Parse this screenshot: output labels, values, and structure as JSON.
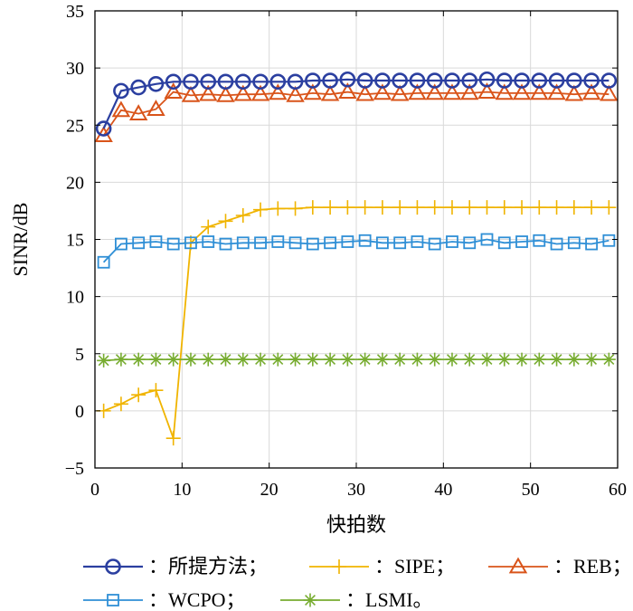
{
  "chart_data": {
    "type": "line",
    "xlabel": "快拍数",
    "ylabel": "SINR/dB",
    "xlim": [
      0,
      60
    ],
    "ylim": [
      -5,
      35
    ],
    "xticks": [
      0,
      10,
      20,
      30,
      40,
      50,
      60
    ],
    "yticks": [
      -5,
      0,
      5,
      10,
      15,
      20,
      25,
      30,
      35
    ],
    "grid": true,
    "legend_position": "bottom",
    "x": [
      1,
      3,
      5,
      7,
      9,
      11,
      13,
      15,
      17,
      19,
      21,
      23,
      25,
      27,
      29,
      31,
      33,
      35,
      37,
      39,
      41,
      43,
      45,
      47,
      49,
      51,
      53,
      55,
      57,
      59
    ],
    "series": [
      {
        "name": "所提方法",
        "legend_label": "：所提方法；",
        "color": "#2b3fa0",
        "marker": "circle",
        "values": [
          24.7,
          28.0,
          28.3,
          28.6,
          28.8,
          28.8,
          28.8,
          28.8,
          28.8,
          28.8,
          28.8,
          28.8,
          28.9,
          28.9,
          29.0,
          28.9,
          28.9,
          28.9,
          28.9,
          28.9,
          28.9,
          28.9,
          29.0,
          28.9,
          28.9,
          28.9,
          28.9,
          28.9,
          28.9,
          28.9
        ]
      },
      {
        "name": "SIPE",
        "legend_label": "：SIPE；",
        "color": "#f0b400",
        "marker": "plus",
        "values": [
          0.0,
          0.6,
          1.4,
          1.8,
          -2.4,
          14.7,
          16.1,
          16.6,
          17.1,
          17.6,
          17.7,
          17.7,
          17.8,
          17.8,
          17.8,
          17.8,
          17.8,
          17.8,
          17.8,
          17.8,
          17.8,
          17.8,
          17.8,
          17.8,
          17.8,
          17.8,
          17.8,
          17.8,
          17.8,
          17.8
        ]
      },
      {
        "name": "REB",
        "legend_label": "：REB；",
        "color": "#d9541a",
        "marker": "triangle",
        "values": [
          24.1,
          26.3,
          26.0,
          26.4,
          27.9,
          27.6,
          27.7,
          27.6,
          27.7,
          27.7,
          27.8,
          27.6,
          27.8,
          27.7,
          27.9,
          27.7,
          27.8,
          27.7,
          27.8,
          27.8,
          27.8,
          27.8,
          27.9,
          27.8,
          27.8,
          27.8,
          27.8,
          27.7,
          27.8,
          27.7
        ]
      },
      {
        "name": "WCPO",
        "legend_label": "：WCPO；",
        "color": "#2f8fd6",
        "marker": "square",
        "values": [
          13.0,
          14.6,
          14.7,
          14.8,
          14.6,
          14.7,
          14.8,
          14.6,
          14.7,
          14.7,
          14.8,
          14.7,
          14.6,
          14.7,
          14.8,
          14.9,
          14.7,
          14.7,
          14.8,
          14.6,
          14.8,
          14.7,
          15.0,
          14.7,
          14.8,
          14.9,
          14.6,
          14.7,
          14.6,
          14.9
        ]
      },
      {
        "name": "LSMI",
        "legend_label": "：LSMI。",
        "color": "#77ac30",
        "marker": "asterisk",
        "values": [
          4.4,
          4.5,
          4.5,
          4.5,
          4.5,
          4.5,
          4.5,
          4.5,
          4.5,
          4.5,
          4.5,
          4.5,
          4.5,
          4.5,
          4.5,
          4.5,
          4.5,
          4.5,
          4.5,
          4.5,
          4.5,
          4.5,
          4.5,
          4.5,
          4.5,
          4.5,
          4.5,
          4.5,
          4.5,
          4.5
        ]
      }
    ]
  }
}
